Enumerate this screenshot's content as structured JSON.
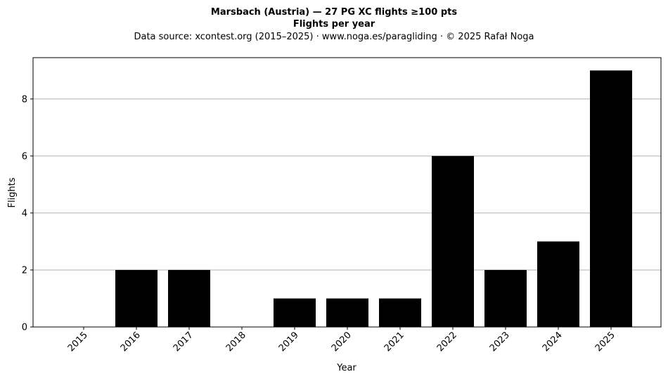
{
  "chart_data": {
    "type": "bar",
    "title": "Marsbach (Austria)  —  27 PG XC flights ≥100 pts",
    "subtitle": "Flights per year",
    "source": "Data source: xcontest.org (2015–2025)  ·  www.noga.es/paragliding  ·  © 2025 Rafał Noga",
    "xlabel": "Year",
    "ylabel": "Flights",
    "categories": [
      "2015",
      "2016",
      "2017",
      "2018",
      "2019",
      "2020",
      "2021",
      "2022",
      "2023",
      "2024",
      "2025"
    ],
    "values": [
      0,
      2,
      2,
      0,
      1,
      1,
      1,
      6,
      2,
      3,
      9
    ],
    "yticks": [
      0,
      2,
      4,
      6,
      8
    ],
    "ylim": [
      0,
      9.45
    ],
    "grid": "horizontal",
    "bar_color": "#000000",
    "grid_color": "#b0b0b0"
  }
}
